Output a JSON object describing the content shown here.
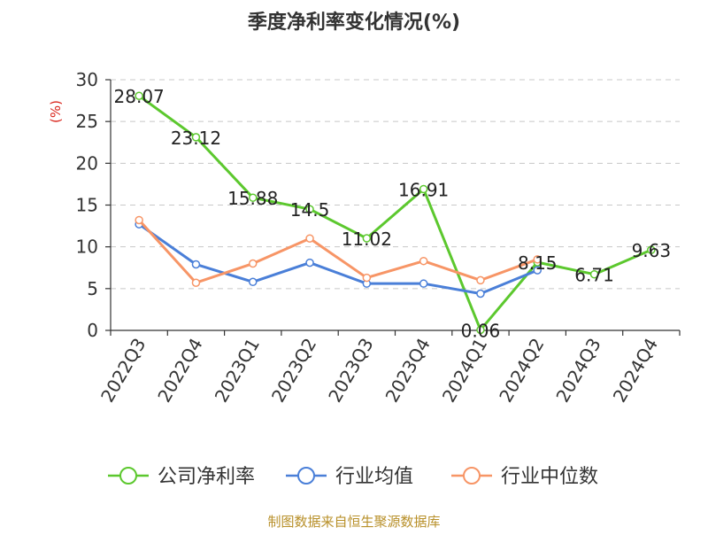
{
  "chart_data": {
    "type": "line",
    "title": "季度净利率变化情况(%)",
    "ylabel": "(%)",
    "xlabel": "",
    "ylim": [
      0,
      30
    ],
    "yticks": [
      0,
      5,
      10,
      15,
      20,
      25,
      30
    ],
    "grid": true,
    "legend_position": "bottom",
    "categories": [
      "2022Q3",
      "2022Q4",
      "2023Q1",
      "2023Q2",
      "2023Q3",
      "2023Q4",
      "2024Q1",
      "2024Q2",
      "2024Q3",
      "2024Q4"
    ],
    "series": [
      {
        "name": "公司净利率",
        "color": "#5cc82e",
        "values": [
          28.07,
          23.12,
          15.88,
          14.5,
          11.02,
          16.91,
          0.06,
          8.15,
          6.71,
          9.63
        ],
        "labels": [
          "28.07",
          "23.12",
          "15.88",
          "14.5",
          "11.02",
          "16.91",
          "0.06",
          "8.15",
          "6.71",
          "9.63"
        ]
      },
      {
        "name": "行业均值",
        "color": "#4a7fd8",
        "values": [
          12.7,
          7.9,
          5.8,
          8.1,
          5.6,
          5.6,
          4.4,
          7.2,
          null,
          null
        ]
      },
      {
        "name": "行业中位数",
        "color": "#f79566",
        "values": [
          13.2,
          5.7,
          8.0,
          11.0,
          6.3,
          8.3,
          6.0,
          8.5,
          null,
          null
        ]
      }
    ]
  },
  "footer": {
    "source": "制图数据来自恒生聚源数据库"
  }
}
